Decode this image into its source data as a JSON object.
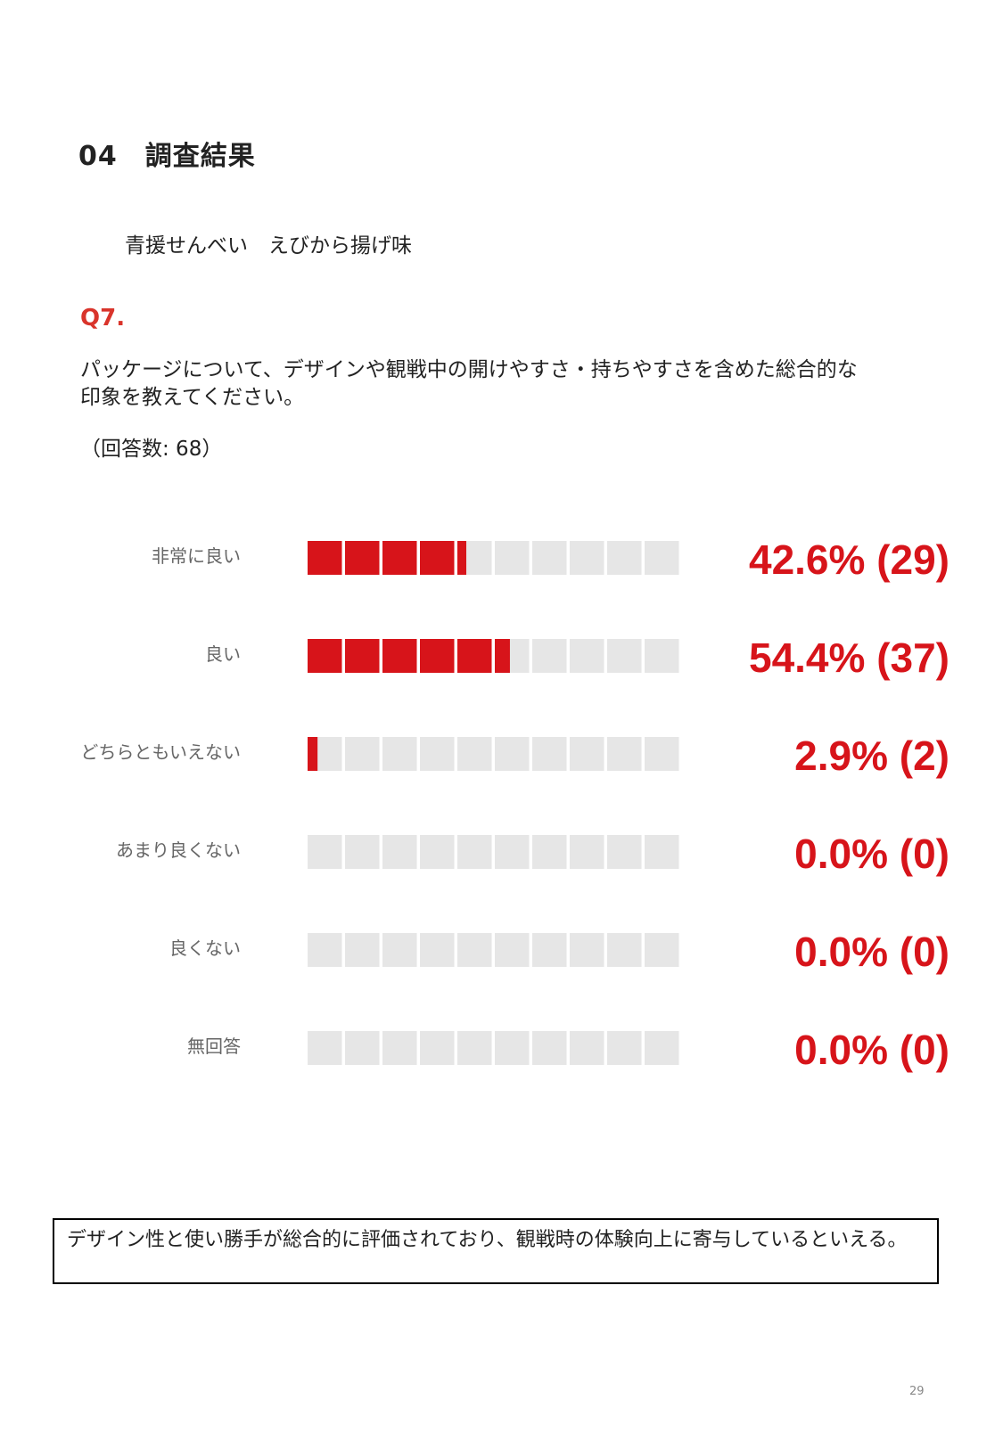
{
  "section": {
    "title": "04　調査結果"
  },
  "product": "青援せんべい　えびから揚げ味",
  "question": {
    "number": "Q7.",
    "text": "パッケージについて、デザインや観戦中の開けやすさ・持ちやすさを含めた総合的な印象を教えてください。",
    "response_count": "（回答数: 68）"
  },
  "chart_data": {
    "type": "bar",
    "orientation": "horizontal",
    "categories": [
      "非常に良い",
      "良い",
      "どちらともいえない",
      "あまり良くない",
      "良くない",
      "無回答"
    ],
    "values": [
      42.6,
      54.4,
      2.9,
      0.0,
      0.0,
      0.0
    ],
    "counts": [
      29,
      37,
      2,
      0,
      0,
      0
    ],
    "value_labels": [
      "42.6% (29)",
      "54.4% (37)",
      "2.9% (2)",
      "0.0% (0)",
      "0.0% (0)",
      "0.0% (0)"
    ],
    "xlim": [
      0,
      100
    ],
    "segments": 10,
    "colors": {
      "fill": "#d7141a",
      "track": "#e6e6e6",
      "label": "#d7141a",
      "category": "#666666"
    }
  },
  "conclusion": "デザイン性と使い勝手が総合的に評価されており、観戦時の体験向上に寄与しているといえる。",
  "page_number": "29"
}
